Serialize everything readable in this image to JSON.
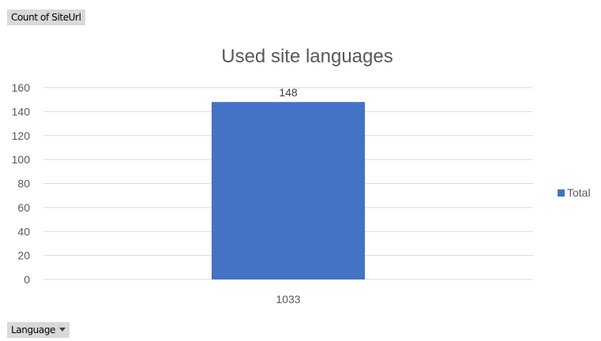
{
  "pivot": {
    "value_field_label": "Count of SiteUrl",
    "axis_field_label": "Language"
  },
  "chart_data": {
    "type": "bar",
    "title": "Used site languages",
    "xlabel": "",
    "ylabel": "",
    "categories": [
      "1033"
    ],
    "series": [
      {
        "name": "Total",
        "values": [
          148
        ],
        "color": "#4472c4"
      }
    ],
    "data_labels": true,
    "ylim": [
      0,
      160
    ],
    "yticks": [
      0,
      20,
      40,
      60,
      80,
      100,
      120,
      140,
      160
    ],
    "grid": true,
    "legend_position": "right"
  }
}
